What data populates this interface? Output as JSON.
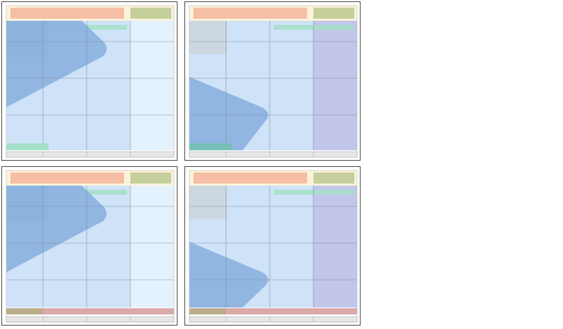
{
  "colors": {
    "panel_border": "#444444",
    "header_band": "#fdf3dc",
    "header_bar_left": "#f6bfa5",
    "header_bar_right": "#c5cf9b",
    "grid_area": "#cfe3f8",
    "right_column_light": "#e3f2fc",
    "right_column_lavender": "#c2c6ea",
    "top_left_block_dark": "#8fa6bf",
    "top_left_block_gray": "#ccd7e0",
    "arrow_shape": "#8db3e0",
    "green_bar": "#a5dfc8",
    "green_bar_teal": "#72c0b1",
    "footer_band": "#e6e6e6",
    "bottom_bar_olive": "#b9ad8c",
    "bottom_bar_pink": "#dba9a8",
    "grid_line": "#7f8d9c"
  },
  "panels": [
    {
      "id": "top-left",
      "right_column": "light",
      "top_left_block": "dark",
      "arrow": "pointing-right-upper",
      "bottom_band": "green-bar"
    },
    {
      "id": "top-right",
      "right_column": "lavender",
      "top_left_block": "gray",
      "arrow": "pointing-right-lower",
      "bottom_band": "teal-bar"
    },
    {
      "id": "bottom-left",
      "right_column": "light",
      "top_left_block": "dark",
      "arrow": "pointing-right-upper",
      "bottom_band": "olive-pink-bar"
    },
    {
      "id": "bottom-right",
      "right_column": "lavender",
      "top_left_block": "gray",
      "arrow": "pointing-right-lower",
      "bottom_band": "olive-pink-bar"
    }
  ]
}
